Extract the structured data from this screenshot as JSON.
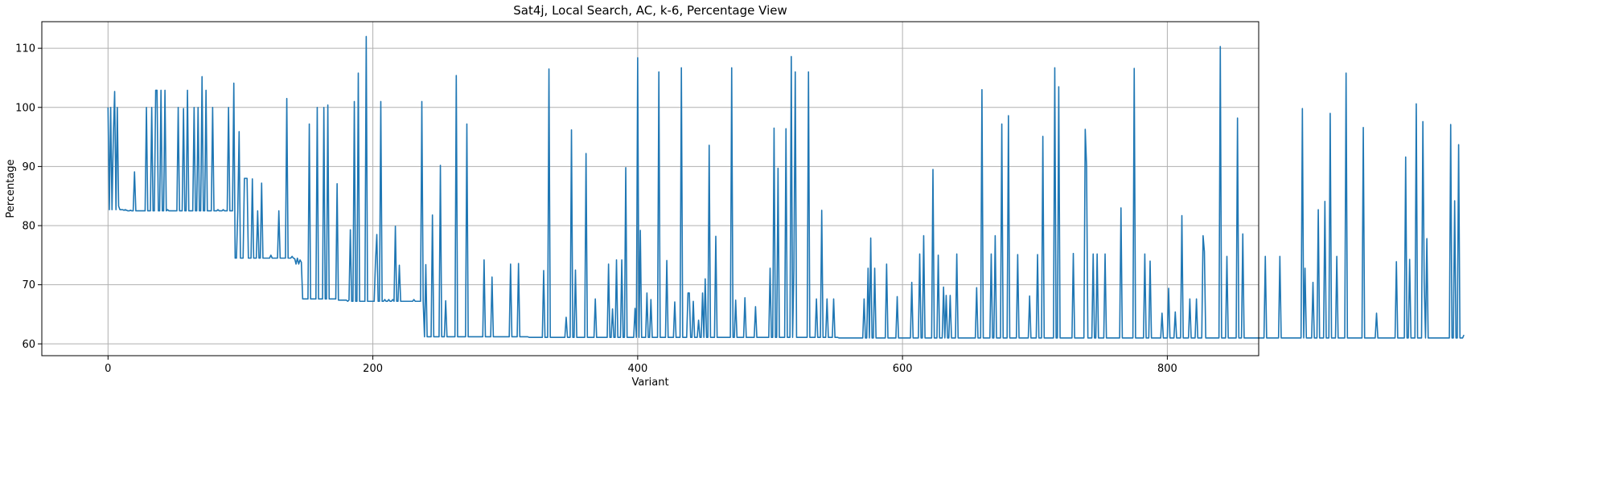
{
  "chart_data": {
    "type": "line",
    "title": "Sat4j, Local Search, AC, k-6, Percentage View",
    "xlabel": "Variant",
    "ylabel": "Percentage",
    "xlim": [
      -50,
      869
    ],
    "ylim": [
      58,
      114.5
    ],
    "x_ticks": [
      0,
      200,
      400,
      600,
      800
    ],
    "y_ticks": [
      60,
      70,
      80,
      90,
      100,
      110
    ],
    "grid": true,
    "line_color": "#1f77b4",
    "series": [
      {
        "x_start": 0,
        "x_step": 1,
        "values": [
          100.0,
          82.7,
          100.0,
          82.7,
          95.0,
          102.7,
          82.7,
          100.0,
          83.3,
          82.7,
          82.7,
          82.7,
          82.6,
          82.7,
          82.6,
          82.5,
          82.5,
          82.6,
          82.5,
          82.5,
          89.1,
          82.5,
          82.5,
          82.5,
          82.5,
          82.5,
          82.5,
          82.5,
          82.5,
          100.0,
          82.5,
          82.5,
          82.5,
          100.0,
          82.5,
          82.5,
          102.9,
          102.9,
          82.5,
          82.5,
          102.9,
          82.5,
          82.5,
          102.9,
          82.5,
          82.7,
          82.5,
          82.5,
          82.5,
          82.5,
          82.5,
          82.5,
          82.5,
          100.0,
          82.5,
          82.5,
          82.5,
          99.8,
          82.5,
          82.5,
          102.9,
          82.5,
          82.5,
          82.5,
          82.5,
          100.0,
          82.5,
          82.5,
          100.0,
          82.5,
          82.5,
          105.2,
          82.5,
          82.5,
          102.9,
          82.5,
          82.5,
          82.5,
          82.5,
          100.0,
          82.5,
          82.5,
          82.5,
          82.7,
          82.5,
          82.5,
          82.5,
          82.7,
          82.5,
          82.5,
          82.5,
          100.0,
          82.5,
          82.5,
          82.5,
          104.1,
          74.5,
          74.5,
          82.6,
          95.9,
          74.5,
          74.5,
          74.5,
          88.0,
          88.0,
          88.0,
          74.5,
          74.5,
          74.5,
          87.9,
          74.5,
          74.5,
          74.5,
          82.5,
          74.5,
          74.5,
          87.2,
          74.5,
          74.5,
          74.5,
          74.5,
          74.5,
          74.5,
          75.0,
          74.5,
          74.5,
          74.5,
          74.5,
          74.5,
          82.5,
          74.5,
          74.5,
          74.5,
          74.5,
          74.5,
          101.5,
          74.5,
          74.5,
          74.5,
          74.8,
          74.5,
          74.4,
          73.5,
          74.5,
          73.5,
          74.2,
          73.8,
          67.6,
          67.6,
          67.6,
          67.6,
          67.6,
          97.2,
          67.6,
          67.6,
          67.6,
          67.6,
          67.6,
          100.0,
          67.6,
          67.6,
          67.6,
          67.6,
          100.0,
          67.6,
          67.6,
          100.4,
          67.6,
          67.6,
          67.6,
          67.6,
          67.6,
          67.6,
          87.1,
          67.4,
          67.4,
          67.4,
          67.4,
          67.4,
          67.4,
          67.4,
          67.2,
          67.4,
          79.3,
          67.2,
          67.2,
          101.0,
          67.2,
          67.2,
          105.8,
          67.2,
          67.2,
          67.2,
          67.2,
          67.2,
          112.0,
          67.2,
          67.2,
          67.2,
          67.2,
          67.2,
          67.2,
          74.0,
          78.5,
          67.2,
          67.2,
          101.0,
          67.2,
          67.2,
          67.5,
          67.2,
          67.2,
          67.5,
          67.2,
          67.2,
          67.5,
          67.2,
          79.9,
          67.2,
          67.2,
          73.3,
          67.2,
          67.2,
          67.2,
          67.2,
          67.2,
          67.2,
          67.2,
          67.2,
          67.2,
          67.2,
          67.5,
          67.2,
          67.2,
          67.2,
          67.2,
          67.2,
          101.0,
          67.2,
          61.2,
          73.4,
          61.2,
          61.2,
          61.2,
          61.2,
          81.8,
          61.2,
          61.2,
          61.2,
          61.2,
          61.2,
          90.2,
          61.2,
          61.2,
          61.2,
          67.3,
          61.2,
          61.2,
          61.2,
          61.2,
          61.2,
          61.2,
          61.2,
          105.4,
          61.2,
          61.2,
          61.2,
          61.2,
          61.2,
          61.2,
          61.2,
          97.2,
          61.2,
          61.2,
          61.2,
          61.2,
          61.2,
          61.2,
          61.2,
          61.2,
          61.2,
          61.2,
          61.2,
          61.2,
          74.2,
          61.2,
          61.2,
          61.2,
          61.2,
          61.2,
          71.3,
          61.2,
          61.2,
          61.2,
          61.2,
          61.2,
          61.2,
          61.2,
          61.2,
          61.2,
          61.2,
          61.2,
          61.2,
          61.2,
          73.5,
          61.2,
          61.2,
          61.2,
          61.2,
          61.2,
          73.6,
          61.2,
          61.2,
          61.2,
          61.2,
          61.2,
          61.2,
          61.2,
          61.1,
          61.1,
          61.1,
          61.1,
          61.1,
          61.1,
          61.1,
          61.1,
          61.1,
          61.1,
          61.1,
          72.4,
          61.1,
          61.1,
          61.1,
          106.5,
          61.1,
          61.1,
          61.1,
          61.1,
          61.1,
          61.1,
          61.1,
          61.1,
          61.1,
          61.1,
          61.1,
          61.1,
          64.5,
          61.1,
          61.1,
          61.1,
          96.2,
          61.1,
          61.1,
          72.5,
          61.1,
          61.1,
          61.1,
          61.1,
          61.1,
          61.1,
          61.1,
          92.2,
          61.1,
          61.1,
          61.1,
          61.1,
          61.1,
          61.1,
          67.6,
          61.1,
          61.1,
          61.1,
          61.1,
          61.1,
          61.1,
          61.1,
          61.1,
          61.1,
          73.5,
          61.1,
          61.1,
          65.9,
          61.1,
          61.1,
          74.2,
          61.1,
          61.1,
          61.1,
          74.2,
          61.1,
          61.1,
          89.8,
          61.1,
          61.1,
          61.1,
          61.1,
          61.1,
          61.1,
          66.0,
          61.1,
          108.4,
          61.1,
          79.2,
          61.1,
          61.1,
          61.1,
          61.1,
          68.6,
          61.1,
          61.1,
          67.5,
          61.1,
          61.1,
          61.1,
          61.1,
          61.1,
          106.0,
          61.1,
          61.1,
          61.1,
          61.1,
          61.1,
          74.1,
          61.1,
          61.1,
          61.1,
          61.1,
          61.1,
          67.1,
          61.1,
          61.1,
          61.1,
          61.1,
          106.7,
          61.1,
          61.1,
          61.1,
          61.1,
          68.6,
          68.6,
          61.1,
          61.1,
          67.2,
          61.1,
          61.1,
          61.1,
          64.0,
          61.1,
          61.1,
          68.6,
          61.1,
          71.0,
          61.1,
          61.1,
          93.6,
          61.1,
          61.1,
          61.1,
          61.1,
          78.2,
          61.1,
          61.1,
          61.1,
          61.1,
          61.1,
          61.1,
          61.1,
          61.1,
          61.1,
          61.1,
          61.1,
          106.7,
          61.1,
          61.1,
          67.4,
          61.1,
          61.1,
          61.1,
          61.1,
          61.1,
          61.1,
          67.8,
          61.1,
          61.1,
          61.1,
          61.1,
          61.1,
          61.1,
          61.1,
          66.3,
          61.1,
          61.1,
          61.1,
          61.1,
          61.1,
          61.1,
          61.1,
          61.1,
          61.1,
          61.1,
          72.8,
          61.1,
          61.1,
          96.5,
          61.1,
          61.1,
          89.7,
          61.1,
          61.1,
          61.1,
          61.1,
          61.1,
          96.4,
          61.1,
          61.1,
          61.1,
          108.6,
          61.1,
          72.8,
          106.0,
          61.1,
          61.1,
          61.1,
          61.1,
          61.1,
          61.1,
          61.1,
          61.1,
          61.1,
          106.0,
          61.1,
          61.1,
          61.1,
          61.1,
          61.1,
          67.6,
          61.1,
          61.1,
          61.1,
          82.6,
          61.1,
          61.1,
          61.1,
          67.6,
          61.1,
          61.1,
          61.1,
          61.1,
          67.6,
          61.1,
          61.1,
          61.1,
          61.0,
          61.0,
          61.0,
          61.0,
          61.0,
          61.0,
          61.0,
          61.0,
          61.0,
          61.0,
          61.0,
          61.0,
          61.0,
          61.0,
          61.0,
          61.0,
          61.0,
          61.0,
          61.0,
          67.6,
          61.0,
          61.0,
          72.8,
          61.0,
          77.9,
          61.0,
          61.0,
          72.8,
          61.0,
          61.0,
          61.0,
          61.0,
          61.0,
          61.0,
          61.0,
          61.0,
          73.5,
          61.0,
          61.0,
          61.0,
          61.0,
          61.0,
          61.0,
          61.0,
          68.0,
          61.0,
          61.0,
          61.0,
          61.0,
          61.0,
          61.0,
          61.0,
          61.0,
          61.0,
          61.0,
          70.4,
          61.0,
          61.0,
          61.0,
          61.0,
          61.0,
          75.2,
          61.0,
          61.0,
          78.3,
          61.0,
          61.0,
          61.0,
          61.0,
          61.0,
          61.0,
          89.5,
          61.0,
          61.0,
          61.0,
          75.0,
          61.0,
          61.0,
          61.0,
          69.6,
          61.0,
          68.2,
          61.0,
          61.0,
          68.2,
          61.0,
          61.0,
          61.0,
          61.0,
          75.2,
          61.0,
          61.0,
          61.0,
          61.0,
          61.0,
          61.0,
          61.0,
          61.0,
          61.0,
          61.0,
          61.0,
          61.0,
          61.0,
          61.0,
          69.5,
          61.0,
          61.0,
          61.0,
          103.0,
          61.0,
          61.0,
          61.0,
          61.0,
          61.0,
          61.0,
          75.2,
          61.0,
          61.0,
          78.3,
          61.0,
          61.0,
          61.0,
          61.0,
          97.2,
          61.0,
          61.0,
          61.0,
          61.0,
          98.6,
          61.0,
          61.0,
          61.0,
          61.0,
          61.0,
          61.0,
          75.1,
          61.0,
          61.0,
          61.0,
          61.0,
          61.0,
          61.0,
          61.0,
          61.0,
          68.1,
          61.0,
          61.0,
          61.0,
          61.0,
          61.0,
          75.1,
          61.0,
          61.0,
          61.0,
          95.1,
          61.0,
          61.0,
          61.0,
          61.0,
          61.0,
          61.0,
          61.0,
          61.0,
          106.7,
          61.0,
          61.0,
          103.5,
          61.0,
          61.0,
          61.0,
          61.0,
          61.0,
          61.0,
          61.0,
          61.0,
          61.0,
          61.0,
          75.3,
          61.0,
          61.0,
          61.0,
          61.0,
          61.0,
          61.0,
          61.0,
          61.0,
          96.3,
          90.2,
          61.0,
          61.0,
          61.0,
          61.0,
          75.2,
          61.0,
          61.0,
          75.2,
          61.0,
          61.0,
          61.0,
          61.0,
          61.0,
          75.2,
          61.0,
          61.0,
          61.0,
          61.0,
          61.0,
          61.0,
          61.0,
          61.0,
          61.0,
          61.0,
          61.0,
          83.0,
          61.0,
          61.0,
          61.0,
          61.0,
          61.0,
          61.0,
          61.0,
          61.0,
          61.0,
          106.6,
          61.0,
          61.0,
          61.0,
          61.0,
          61.0,
          61.0,
          61.0,
          75.2,
          61.0,
          61.0,
          61.0,
          74.0,
          61.0,
          61.0,
          61.0,
          61.0,
          61.0,
          61.0,
          61.0,
          61.0,
          65.2,
          61.0,
          61.0,
          61.0,
          61.0,
          69.4,
          61.0,
          61.0,
          61.0,
          61.0,
          65.4,
          61.0,
          61.0,
          61.0,
          61.0,
          81.7,
          61.0,
          61.0,
          61.0,
          61.0,
          61.0,
          67.6,
          61.0,
          61.0,
          61.0,
          61.0,
          67.6,
          61.0,
          61.0,
          61.0,
          61.0,
          78.3,
          75.6,
          61.0,
          61.0,
          61.0,
          61.0,
          61.0,
          61.0,
          61.0,
          61.0,
          61.0,
          61.0,
          61.0,
          110.3,
          61.0,
          61.0,
          61.0,
          61.0,
          74.8,
          61.0,
          61.0,
          61.0,
          61.0,
          61.0,
          61.0,
          61.0,
          98.2,
          61.0,
          61.0,
          61.0,
          78.6,
          61.0,
          61.0,
          61.0,
          61.0,
          61.0,
          61.0,
          61.0,
          61.0,
          61.0,
          61.0,
          61.0,
          61.0,
          61.0,
          61.0,
          61.0,
          61.0,
          74.8,
          61.0,
          61.0,
          61.0,
          61.0,
          61.0,
          61.0,
          61.0,
          61.0,
          61.0,
          61.0,
          74.8,
          61.0,
          61.0,
          61.0,
          61.0,
          61.0,
          61.0,
          61.0,
          61.0,
          61.0,
          61.0,
          61.0,
          61.0,
          61.0,
          61.0,
          61.0,
          61.0,
          99.8,
          61.0,
          72.8,
          61.0,
          61.0,
          61.0,
          61.0,
          61.0,
          70.4,
          61.0,
          61.0,
          61.0,
          82.7,
          61.0,
          61.0,
          61.0,
          61.0,
          84.1,
          61.0,
          61.0,
          61.0,
          99.0,
          61.0,
          61.0,
          61.0,
          61.0,
          74.8,
          61.0,
          61.0,
          61.0,
          61.0,
          61.0,
          61.0,
          105.8,
          61.0,
          61.0,
          61.0,
          61.0,
          61.0,
          61.0,
          61.0,
          61.0,
          61.0,
          61.0,
          61.0,
          61.0,
          96.6,
          61.0,
          61.0,
          61.0,
          61.0,
          61.0,
          61.0,
          61.0,
          61.0,
          61.0,
          65.2,
          61.0,
          61.0,
          61.0,
          61.0,
          61.0,
          61.0,
          61.0,
          61.0,
          61.0,
          61.0,
          61.0,
          61.0,
          61.0,
          61.0,
          73.9,
          61.0,
          61.0,
          61.0,
          61.0,
          61.0,
          61.0,
          91.6,
          61.0,
          61.0,
          74.3,
          61.0,
          61.0,
          61.0,
          61.0,
          100.6,
          61.0,
          61.0,
          61.0,
          61.0,
          97.6,
          70.3,
          61.0,
          77.8,
          61.0,
          61.0,
          61.0,
          61.0,
          61.0,
          61.0,
          61.0,
          61.0,
          61.0,
          61.0,
          61.0,
          61.0,
          61.0,
          61.0,
          61.0,
          61.0,
          61.0,
          97.1,
          61.0,
          61.0,
          84.2,
          61.0,
          61.0,
          93.7,
          61.0,
          61.0,
          61.0,
          61.5
        ]
      }
    ]
  }
}
